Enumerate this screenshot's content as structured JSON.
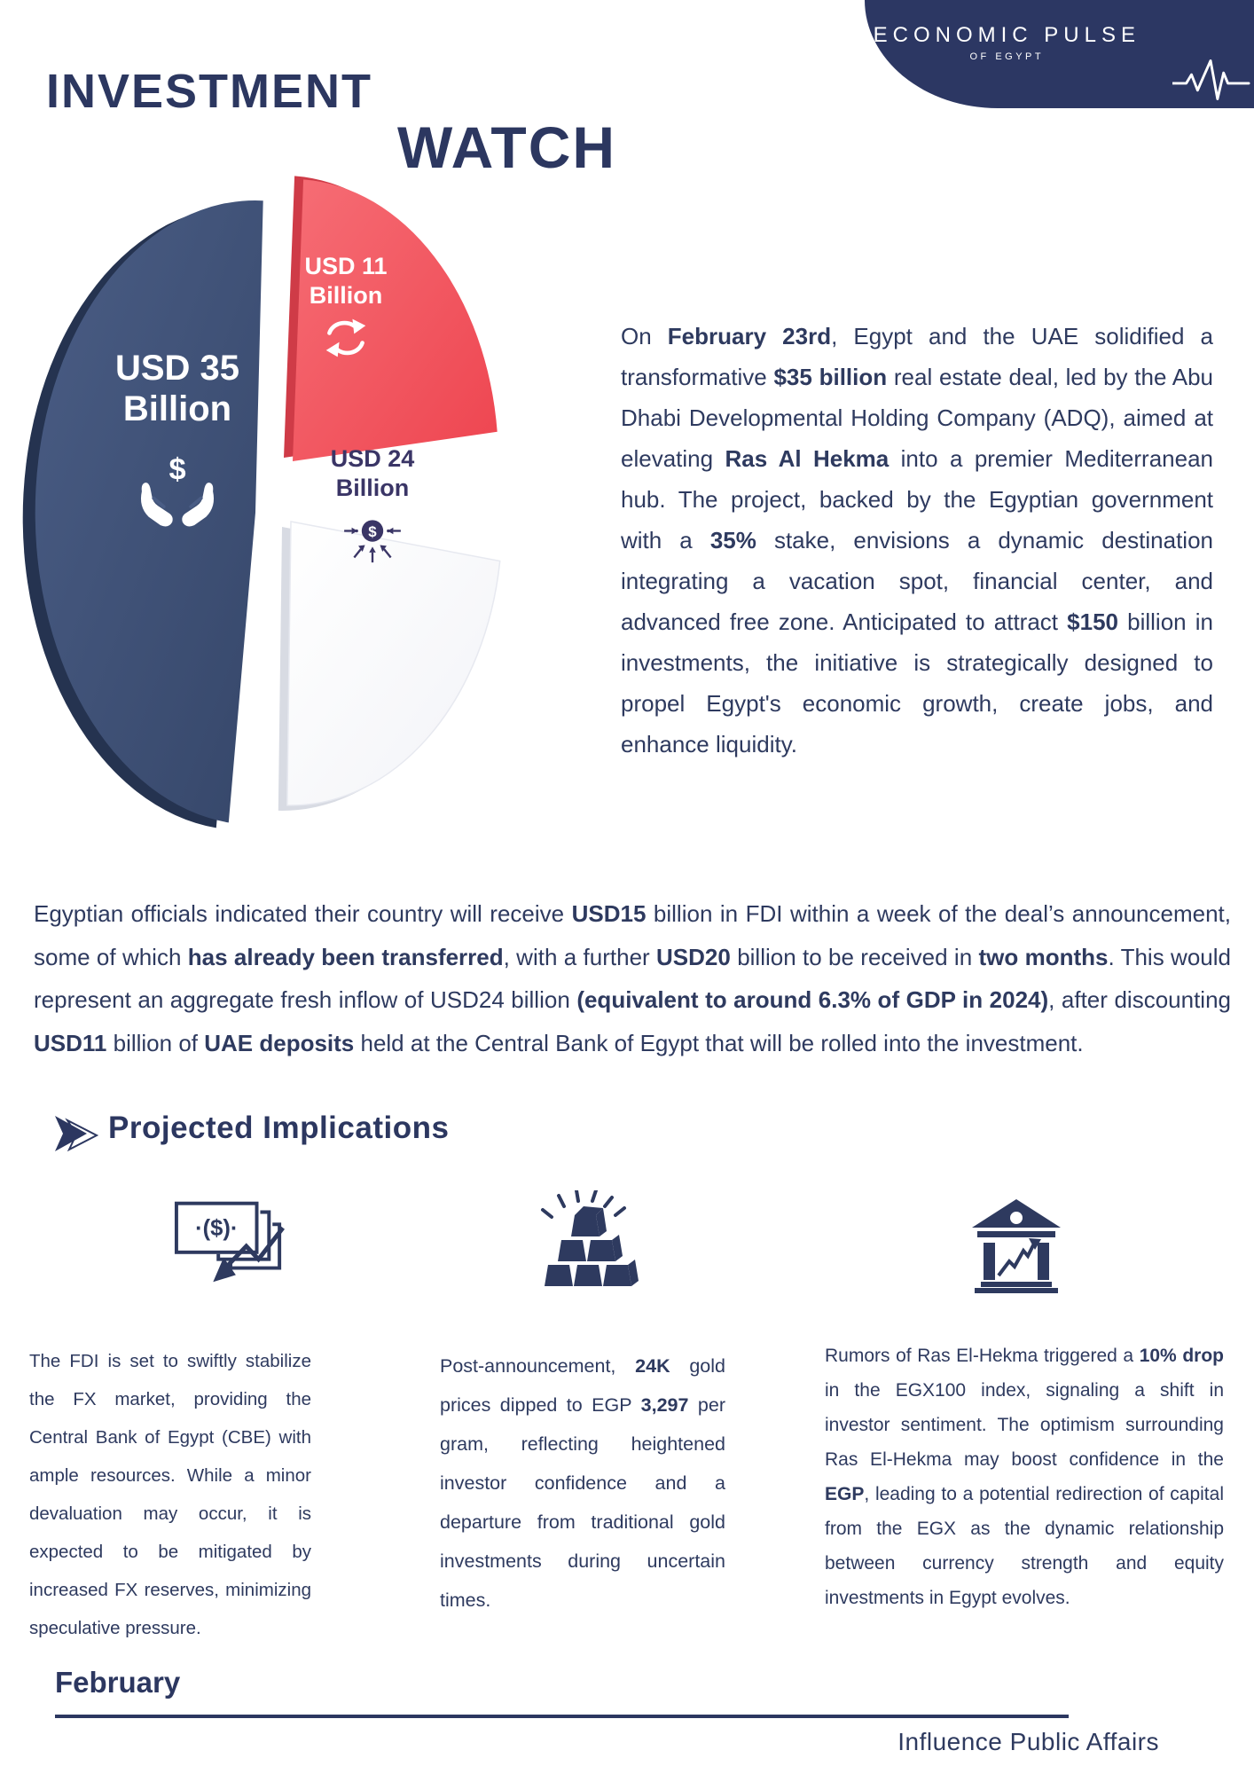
{
  "header": {
    "brand_name": "ECONOMIC PULSE",
    "brand_tagline": "OF EGYPT",
    "accent_color": "#2c3763"
  },
  "title": {
    "line1": "INVESTMENT",
    "line2": "WATCH"
  },
  "chart_data": {
    "type": "pie",
    "title": "Ras Al Hekma deal investment breakdown",
    "unit": "USD billion",
    "legend_position": "in-slice",
    "slices": [
      {
        "label": "USD 35 Billion",
        "value": 35,
        "value_label": "USD 35",
        "unit_label": "Billion",
        "color": "#3f5176",
        "icon": "hands-holding-dollar-icon"
      },
      {
        "label": "USD 11 Billion",
        "value": 11,
        "value_label": "USD 11",
        "unit_label": "Billion",
        "color": "#f2525d",
        "icon": "sync-arrows-icon"
      },
      {
        "label": "USD 24 Billion",
        "value": 24,
        "value_label": "USD 24",
        "unit_label": "Billion",
        "color": "#f7f8fa",
        "icon": "dollar-convergence-icon"
      }
    ]
  },
  "intro": {
    "segments": [
      {
        "t": "On "
      },
      {
        "t": "February 23rd",
        "b": true
      },
      {
        "t": ", Egypt and the UAE solidified a transformative "
      },
      {
        "t": "$35 billion",
        "b": true
      },
      {
        "t": " real estate deal, led by the Abu Dhabi Developmental Holding Company (ADQ), aimed at elevating "
      },
      {
        "t": "Ras Al Hekma",
        "b": true
      },
      {
        "t": " into a premier Mediterranean hub. The project, backed by the Egyptian government with a "
      },
      {
        "t": "35%",
        "b": true
      },
      {
        "t": " stake, envisions a dynamic destination integrating a vacation spot, financial center, and advanced free zone. Anticipated to attract "
      },
      {
        "t": "$150",
        "b": true
      },
      {
        "t": " billion in investments, the initiative is strategically designed to propel Egypt's economic growth, create jobs, and enhance liquidity."
      }
    ]
  },
  "para2": {
    "segments": [
      {
        "t": "Egyptian officials indicated their country will receive "
      },
      {
        "t": "USD15",
        "b": true
      },
      {
        "t": " billion in FDI within a week of the deal’s announcement, some of which "
      },
      {
        "t": "has already been transferred",
        "b": true
      },
      {
        "t": ", with a further "
      },
      {
        "t": "USD20",
        "b": true
      },
      {
        "t": " billion to be received in "
      },
      {
        "t": "two months",
        "b": true
      },
      {
        "t": ". This would represent an aggregate fresh inflow of USD24 billion "
      },
      {
        "t": "(equivalent to around 6.3% of GDP in 2024)",
        "b": true
      },
      {
        "t": ", after discounting "
      },
      {
        "t": "USD11",
        "b": true
      },
      {
        "t": " billion of "
      },
      {
        "t": "UAE deposits",
        "b": true
      },
      {
        "t": " held at the Central Bank of Egypt that will be rolled into the investment."
      }
    ]
  },
  "section": {
    "heading": "Projected Implications"
  },
  "implications": {
    "col1": {
      "icon": "money-exchange-rate-icon",
      "segments": [
        {
          "t": "The FDI is set to swiftly stabilize the FX market, providing the Central Bank of Egypt (CBE) with ample resources. While a minor devaluation may occur, it is expected to be mitigated by increased FX reserves, minimizing speculative pressure."
        }
      ]
    },
    "col2": {
      "icon": "gold-bars-icon",
      "segments": [
        {
          "t": "Post-announcement, "
        },
        {
          "t": "24K",
          "b": true
        },
        {
          "t": " gold prices dipped to EGP "
        },
        {
          "t": "3,297",
          "b": true
        },
        {
          "t": " per gram, reflecting heightened investor confidence and a departure from traditional gold investments during uncertain times."
        }
      ]
    },
    "col3": {
      "icon": "stock-exchange-bank-icon",
      "segments": [
        {
          "t": "Rumors of Ras El-Hekma triggered a "
        },
        {
          "t": "10% drop",
          "b": true
        },
        {
          "t": " in the EGX100 index, signaling a shift in investor sentiment. The optimism surrounding Ras El-Hekma may boost confidence in the "
        },
        {
          "t": "EGP",
          "b": true
        },
        {
          "t": ", leading to a potential redirection of capital from the EGX as the dynamic relationship between currency strength and equity investments in Egypt evolves."
        }
      ]
    }
  },
  "footer": {
    "month": "February",
    "publisher": "Influence Public Affairs"
  },
  "icons": {
    "pulse-icon": "heartbeat/EKG line",
    "hands-holding-dollar-icon": "two hands cupping a dollar sign",
    "sync-arrows-icon": "two circular refresh arrows",
    "dollar-convergence-icon": "dollar coin with arrows converging inward",
    "money-exchange-rate-icon": "banknotes with zigzag arrow trending down",
    "gold-bars-icon": "pyramid of shining gold ingots",
    "stock-exchange-bank-icon": "bank building with rising zigzag arrow",
    "section-arrow-icon": "double right arrowhead"
  }
}
